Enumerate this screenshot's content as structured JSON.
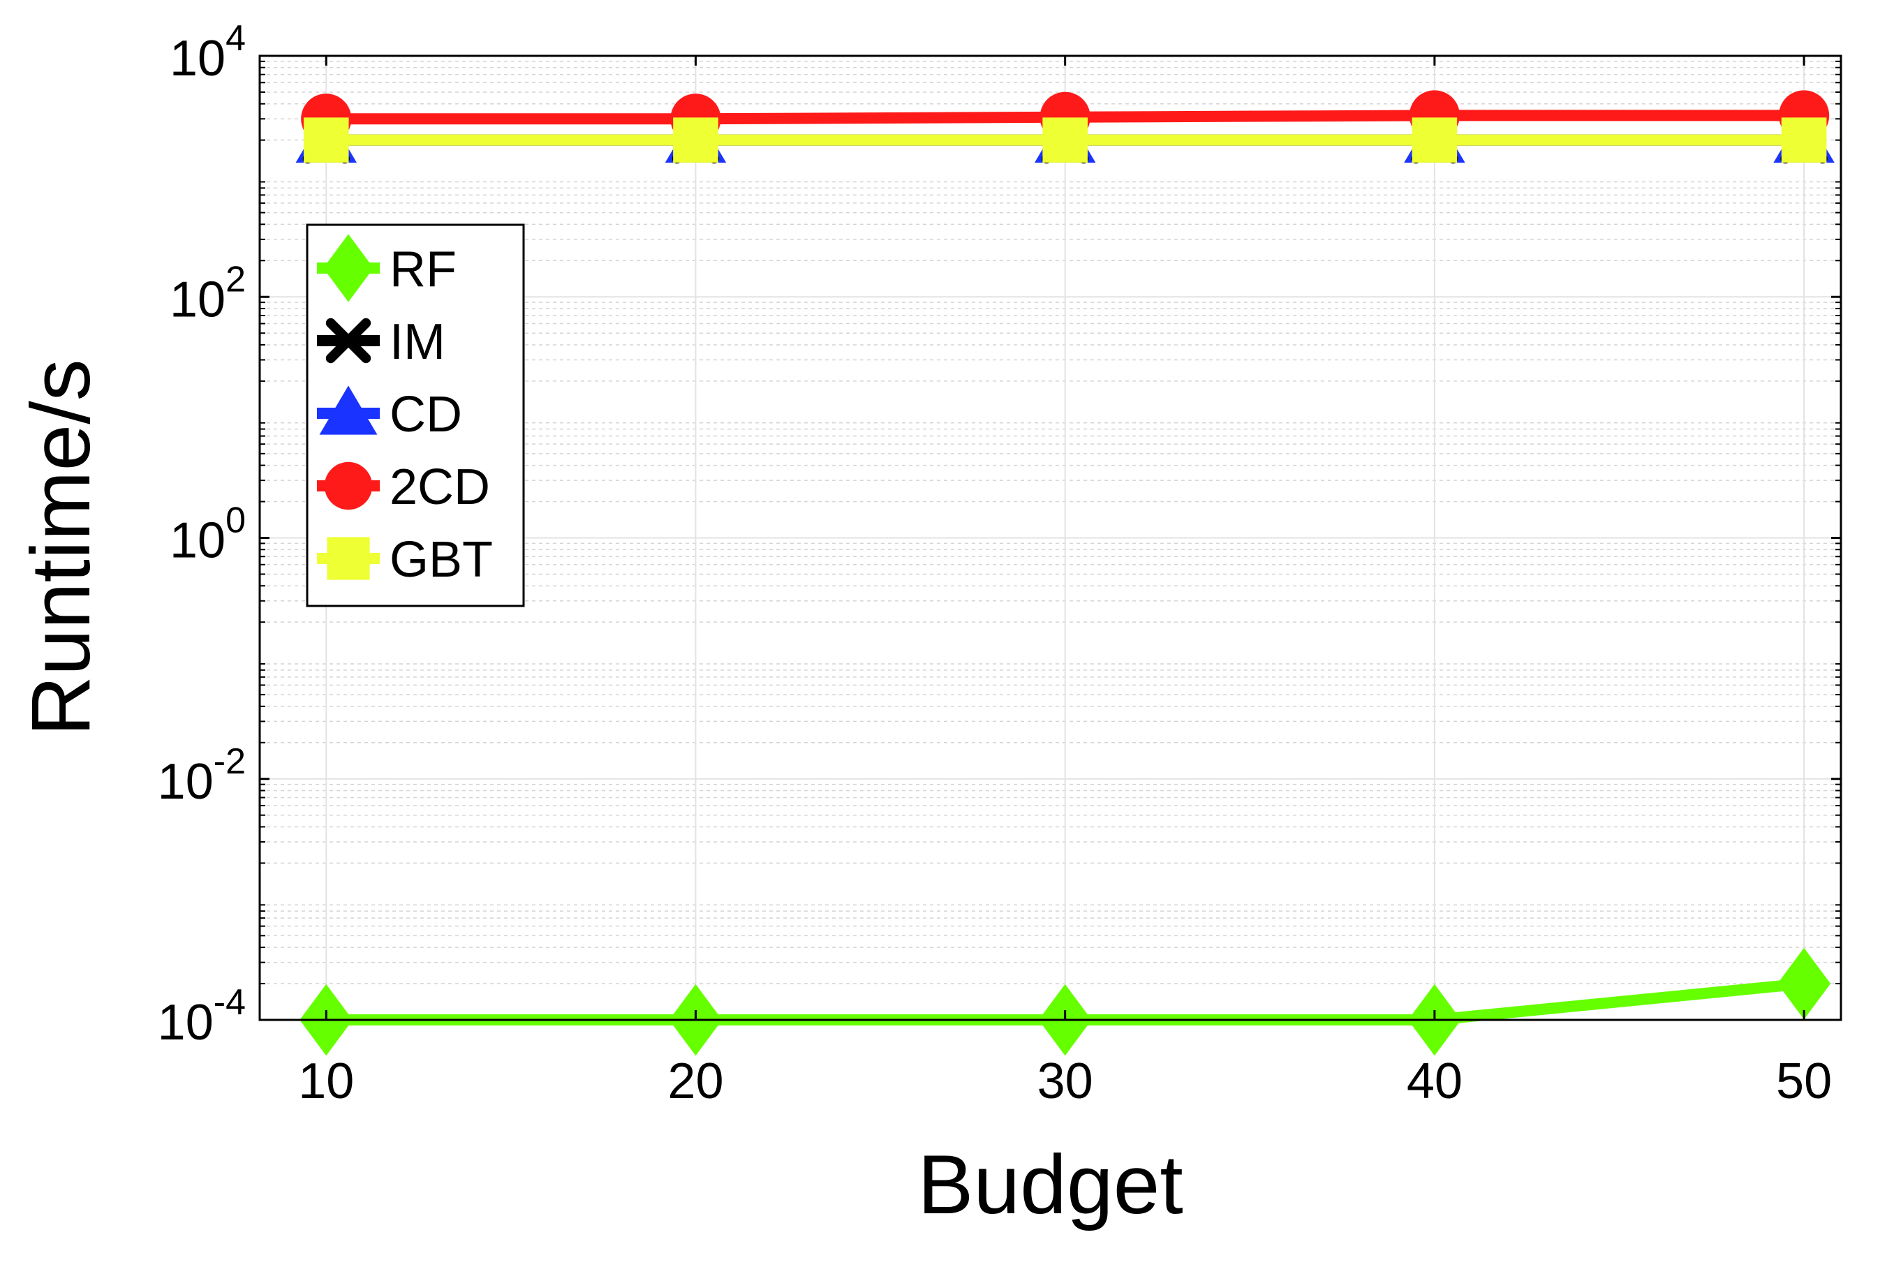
{
  "chart_data": {
    "type": "line",
    "xlabel": "Budget",
    "ylabel": "Runtime/s",
    "x": [
      10,
      20,
      30,
      40,
      50
    ],
    "xlim": [
      8.2,
      51.0
    ],
    "ylim": [
      0.0001,
      10000
    ],
    "yscale": "log",
    "x_ticks": [
      "10",
      "20",
      "30",
      "40",
      "50"
    ],
    "y_ticks": [
      {
        "base": "10",
        "exp": "4",
        "value": 10000
      },
      {
        "base": "10",
        "exp": "2",
        "value": 100
      },
      {
        "base": "10",
        "exp": "0",
        "value": 1
      },
      {
        "base": "10",
        "exp": "-2",
        "value": 0.01
      },
      {
        "base": "10",
        "exp": "-4",
        "value": 0.0001
      }
    ],
    "grid": true,
    "legend_position": "upper-left",
    "series": [
      {
        "name": "RF",
        "values": [
          0.0001,
          0.0001,
          0.0001,
          0.0001,
          0.0002
        ],
        "color": "#66ff00",
        "marker": "diamond"
      },
      {
        "name": "IM",
        "values": [
          2000,
          2000,
          2000,
          2000,
          2000
        ],
        "color": "#000000",
        "marker": "x"
      },
      {
        "name": "CD",
        "values": [
          2000,
          2000,
          2000,
          2000,
          2000
        ],
        "color": "#1a33ff",
        "marker": "triangle"
      },
      {
        "name": "2CD",
        "values": [
          3000,
          3000,
          3100,
          3200,
          3200
        ],
        "color": "#ff1a1a",
        "marker": "circle"
      },
      {
        "name": "GBT",
        "values": [
          2000,
          2000,
          2000,
          2000,
          2000
        ],
        "color": "#eeff33",
        "marker": "square"
      }
    ],
    "draw_order": [
      "CD",
      "IM",
      "2CD",
      "GBT",
      "RF"
    ]
  }
}
